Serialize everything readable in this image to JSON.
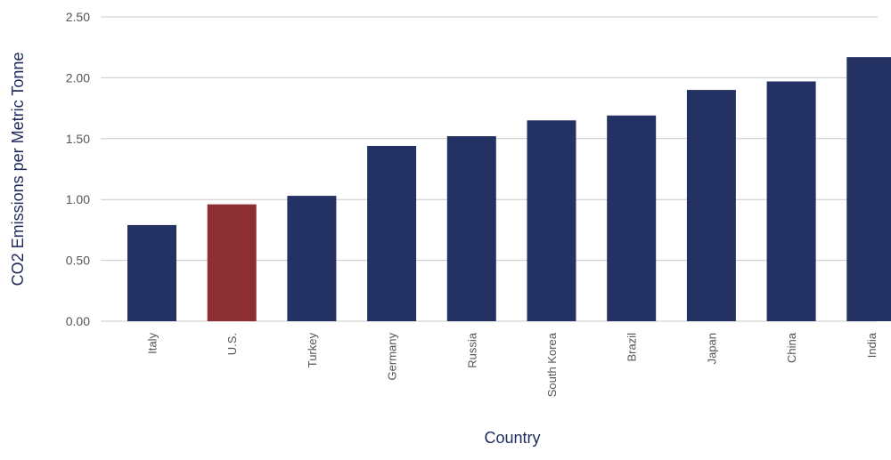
{
  "chart_data": {
    "type": "bar",
    "title": "",
    "xlabel": "Country",
    "ylabel": "CO2 Emissions per Metric Tonne",
    "ylim": [
      0,
      2.5
    ],
    "y_ticks": [
      "0.00",
      "0.50",
      "1.00",
      "1.50",
      "2.00",
      "2.50"
    ],
    "categories": [
      "Italy",
      "U.S.",
      "Turkey",
      "Germany",
      "Russia",
      "South Korea",
      "Brazil",
      "Japan",
      "China",
      "India"
    ],
    "values": [
      0.79,
      0.96,
      1.03,
      1.44,
      1.52,
      1.65,
      1.69,
      1.9,
      1.97,
      2.17
    ],
    "highlight_category": "U.S.",
    "grid": true,
    "colors": {
      "bar": "#243163",
      "highlight": "#8b2f33",
      "grid": "#c8c8c8",
      "axis_title": "#1f2a5a",
      "tick_text": "#555555"
    }
  }
}
